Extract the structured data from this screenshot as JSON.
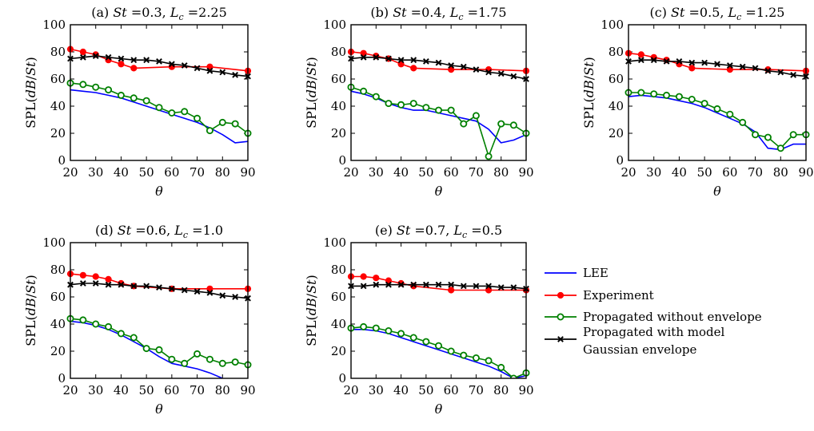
{
  "legend": {
    "placement": "right",
    "entries": [
      {
        "key": "lee",
        "lines": [
          "LEE"
        ],
        "color": "#0000ff",
        "marker": "none"
      },
      {
        "key": "experiment",
        "lines": [
          "Experiment"
        ],
        "color": "#ff0000",
        "marker": "filled-circle"
      },
      {
        "key": "propagated_without",
        "lines": [
          "Propagated without envelope"
        ],
        "color": "#008000",
        "marker": "open-circle"
      },
      {
        "key": "propagated_with",
        "lines": [
          "Propagated with model",
          "Gaussian envelope"
        ],
        "color": "#000000",
        "marker": "x"
      }
    ]
  },
  "chart_data": [
    {
      "type": "line",
      "title": "(a) St =0.3, L_c =2.25",
      "title_parts": {
        "panel": "(a)",
        "st_symbol": "St",
        "st_value": "=0.3",
        "l_symbol": "L",
        "l_sub": "c",
        "l_value": "=2.25"
      },
      "xlabel": "θ",
      "ylabel": "SPL(dB/St)",
      "xlim": [
        20,
        90
      ],
      "ylim": [
        0,
        100
      ],
      "xticks": [
        20,
        30,
        40,
        50,
        60,
        70,
        80,
        90
      ],
      "yticks": [
        0,
        20,
        40,
        60,
        80,
        100
      ],
      "series": {
        "lee": {
          "x": [
            20,
            25,
            30,
            35,
            40,
            45,
            50,
            55,
            60,
            65,
            70,
            75,
            80,
            85,
            90
          ],
          "y": [
            52,
            51,
            50,
            48,
            46,
            43,
            40,
            37,
            34,
            31,
            28,
            24,
            19,
            13,
            14
          ]
        },
        "experiment": {
          "x": [
            20,
            25,
            30,
            35,
            40,
            45,
            60,
            75,
            90
          ],
          "y": [
            82,
            80,
            78,
            74,
            71,
            68,
            69,
            69,
            66
          ]
        },
        "propagated_without": {
          "x": [
            20,
            25,
            30,
            35,
            40,
            45,
            50,
            55,
            60,
            65,
            70,
            75,
            80,
            85,
            90
          ],
          "y": [
            57,
            56,
            54,
            52,
            48,
            46,
            44,
            39,
            35,
            36,
            31,
            22,
            28,
            27,
            20
          ]
        },
        "propagated_with": {
          "x": [
            20,
            25,
            30,
            35,
            40,
            45,
            50,
            55,
            60,
            65,
            70,
            75,
            80,
            85,
            90
          ],
          "y": [
            75,
            76,
            77,
            76,
            75,
            74,
            74,
            73,
            71,
            70,
            68,
            66,
            65,
            63,
            62
          ]
        }
      }
    },
    {
      "type": "line",
      "title": "(b) St =0.4, L_c =1.75",
      "title_parts": {
        "panel": "(b)",
        "st_symbol": "St",
        "st_value": "=0.4",
        "l_symbol": "L",
        "l_sub": "c",
        "l_value": "=1.75"
      },
      "xlabel": "θ",
      "ylabel": "SPL(dB/St)",
      "xlim": [
        20,
        90
      ],
      "ylim": [
        0,
        100
      ],
      "xticks": [
        20,
        30,
        40,
        50,
        60,
        70,
        80,
        90
      ],
      "yticks": [
        0,
        20,
        40,
        60,
        80,
        100
      ],
      "series": {
        "lee": {
          "x": [
            20,
            25,
            30,
            35,
            40,
            45,
            50,
            55,
            60,
            65,
            70,
            75,
            80,
            85,
            90
          ],
          "y": [
            51,
            49,
            46,
            42,
            39,
            37,
            37,
            35,
            33,
            31,
            29,
            23,
            13,
            15,
            19
          ]
        },
        "experiment": {
          "x": [
            20,
            25,
            30,
            35,
            40,
            45,
            60,
            75,
            90
          ],
          "y": [
            80,
            79,
            77,
            75,
            71,
            68,
            67,
            67,
            66
          ]
        },
        "propagated_without": {
          "x": [
            20,
            25,
            30,
            35,
            40,
            45,
            50,
            55,
            60,
            65,
            70,
            75,
            80,
            85,
            90
          ],
          "y": [
            54,
            51,
            47,
            42,
            41,
            42,
            39,
            37,
            37,
            27,
            33,
            3,
            27,
            26,
            20
          ]
        },
        "propagated_with": {
          "x": [
            20,
            25,
            30,
            35,
            40,
            45,
            50,
            55,
            60,
            65,
            70,
            75,
            80,
            85,
            90
          ],
          "y": [
            75,
            76,
            76,
            75,
            74,
            74,
            73,
            72,
            70,
            69,
            67,
            65,
            64,
            62,
            60
          ]
        }
      }
    },
    {
      "type": "line",
      "title": "(c) St =0.5, L_c =1.25",
      "title_parts": {
        "panel": "(c)",
        "st_symbol": "St",
        "st_value": "=0.5",
        "l_symbol": "L",
        "l_sub": "c",
        "l_value": "=1.25"
      },
      "xlabel": "θ",
      "ylabel": "SPL(dB/St)",
      "xlim": [
        20,
        90
      ],
      "ylim": [
        0,
        100
      ],
      "xticks": [
        20,
        30,
        40,
        50,
        60,
        70,
        80,
        90
      ],
      "yticks": [
        0,
        20,
        40,
        60,
        80,
        100
      ],
      "series": {
        "lee": {
          "x": [
            20,
            25,
            30,
            35,
            40,
            45,
            50,
            55,
            60,
            65,
            70,
            75,
            80,
            85,
            90
          ],
          "y": [
            47,
            48,
            47,
            46,
            44,
            42,
            39,
            35,
            31,
            27,
            21,
            9,
            8,
            12,
            12
          ]
        },
        "experiment": {
          "x": [
            20,
            25,
            30,
            35,
            40,
            45,
            60,
            75,
            90
          ],
          "y": [
            79,
            78,
            76,
            74,
            71,
            68,
            67,
            67,
            66
          ]
        },
        "propagated_without": {
          "x": [
            20,
            25,
            30,
            35,
            40,
            45,
            50,
            55,
            60,
            65,
            70,
            75,
            80,
            85,
            90
          ],
          "y": [
            50,
            50,
            49,
            48,
            47,
            45,
            42,
            38,
            34,
            28,
            19,
            17,
            9,
            19,
            19
          ]
        },
        "propagated_with": {
          "x": [
            20,
            25,
            30,
            35,
            40,
            45,
            50,
            55,
            60,
            65,
            70,
            75,
            80,
            85,
            90
          ],
          "y": [
            73,
            74,
            74,
            73,
            73,
            72,
            72,
            71,
            70,
            69,
            68,
            66,
            65,
            63,
            62
          ]
        }
      }
    },
    {
      "type": "line",
      "title": "(d) St =0.6, L_c =1.0",
      "title_parts": {
        "panel": "(d)",
        "st_symbol": "St",
        "st_value": "=0.6",
        "l_symbol": "L",
        "l_sub": "c",
        "l_value": "=1.0"
      },
      "xlabel": "θ",
      "ylabel": "SPL(dB/St)",
      "xlim": [
        20,
        90
      ],
      "ylim": [
        0,
        100
      ],
      "xticks": [
        20,
        30,
        40,
        50,
        60,
        70,
        80,
        90
      ],
      "yticks": [
        0,
        20,
        40,
        60,
        80,
        100
      ],
      "series": {
        "lee": {
          "x": [
            20,
            25,
            30,
            35,
            40,
            45,
            50,
            55,
            60,
            65,
            70,
            75,
            80
          ],
          "y": [
            42,
            41,
            39,
            36,
            32,
            27,
            22,
            16,
            11,
            9,
            7,
            4,
            0
          ]
        },
        "experiment": {
          "x": [
            20,
            25,
            30,
            35,
            40,
            45,
            60,
            75,
            90
          ],
          "y": [
            77,
            76,
            75,
            73,
            70,
            68,
            66,
            66,
            66
          ]
        },
        "propagated_without": {
          "x": [
            20,
            25,
            30,
            35,
            40,
            45,
            50,
            55,
            60,
            65,
            70,
            75,
            80,
            85,
            90
          ],
          "y": [
            44,
            43,
            40,
            38,
            33,
            30,
            22,
            21,
            14,
            11,
            18,
            14,
            11,
            12,
            10
          ]
        },
        "propagated_with": {
          "x": [
            20,
            25,
            30,
            35,
            40,
            45,
            50,
            55,
            60,
            65,
            70,
            75,
            80,
            85,
            90
          ],
          "y": [
            69,
            70,
            70,
            69,
            69,
            68,
            68,
            67,
            66,
            65,
            64,
            63,
            61,
            60,
            59
          ]
        }
      }
    },
    {
      "type": "line",
      "title": "(e) St =0.7, L_c =0.5",
      "title_parts": {
        "panel": "(e)",
        "st_symbol": "St",
        "st_value": "=0.7",
        "l_symbol": "L",
        "l_sub": "c",
        "l_value": "=0.5"
      },
      "xlabel": "θ",
      "ylabel": "SPL(dB/St)",
      "xlim": [
        20,
        90
      ],
      "ylim": [
        0,
        100
      ],
      "xticks": [
        20,
        30,
        40,
        50,
        60,
        70,
        80,
        90
      ],
      "yticks": [
        0,
        20,
        40,
        60,
        80,
        100
      ],
      "series": {
        "lee": {
          "x": [
            20,
            25,
            30,
            35,
            40,
            45,
            50,
            55,
            60,
            65,
            70,
            75,
            80,
            85,
            90
          ],
          "y": [
            36,
            36,
            35,
            33,
            30,
            27,
            24,
            21,
            18,
            15,
            12,
            9,
            5,
            0,
            2
          ]
        },
        "experiment": {
          "x": [
            20,
            25,
            30,
            35,
            40,
            45,
            60,
            75,
            90
          ],
          "y": [
            75,
            75,
            74,
            72,
            70,
            68,
            65,
            65,
            65
          ]
        },
        "propagated_without": {
          "x": [
            20,
            25,
            30,
            35,
            40,
            45,
            50,
            55,
            60,
            65,
            70,
            75,
            80,
            85,
            90
          ],
          "y": [
            37,
            38,
            37,
            35,
            33,
            30,
            27,
            24,
            20,
            17,
            15,
            13,
            8,
            0,
            4
          ]
        },
        "propagated_with": {
          "x": [
            20,
            25,
            30,
            35,
            40,
            45,
            50,
            55,
            60,
            65,
            70,
            75,
            80,
            85,
            90
          ],
          "y": [
            68,
            68,
            69,
            69,
            69,
            69,
            69,
            69,
            69,
            68,
            68,
            68,
            67,
            67,
            66
          ]
        }
      }
    }
  ]
}
